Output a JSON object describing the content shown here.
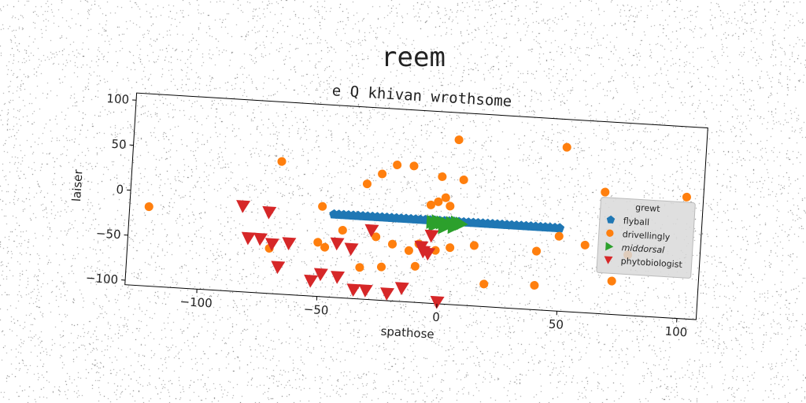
{
  "chart_data": {
    "type": "scatter",
    "title": "reem",
    "subtitle": "e Q khivan wrothsome",
    "xlabel": "spathose",
    "ylabel": "laiser",
    "xlim": [
      -130,
      108
    ],
    "ylim": [
      -105,
      108
    ],
    "xticks": [
      -100,
      -50,
      0,
      50,
      100
    ],
    "xtick_labels": [
      "−100",
      "−50",
      "0",
      "50",
      "100"
    ],
    "yticks": [
      -100,
      -50,
      0,
      50,
      100
    ],
    "ytick_labels": [
      "−100",
      "−50",
      "0",
      "50",
      "100"
    ],
    "grid": false,
    "legend": {
      "title": "grewt",
      "placement": "right"
    },
    "series": [
      {
        "name": "flyball",
        "color": "#1f77b4",
        "marker": "pentagon",
        "x": [
          -45,
          -43,
          -41,
          -39,
          -37,
          -35,
          -33,
          -31,
          -29,
          -27,
          -25,
          -23,
          -21,
          -19,
          -17,
          -15,
          -13,
          -11,
          -9,
          -7,
          -5,
          -3,
          -1,
          1,
          3,
          5,
          7,
          9,
          11,
          13,
          15,
          17,
          19,
          21,
          23,
          25,
          27,
          29,
          31,
          33,
          35,
          37,
          39,
          41,
          43,
          45,
          47,
          49
        ],
        "y": [
          -13,
          -13,
          -13,
          -13,
          -13,
          -13,
          -13,
          -13,
          -13,
          -13,
          -13,
          -13,
          -13,
          -13,
          -13,
          -13,
          -13,
          -13,
          -13,
          -13,
          -13,
          -13,
          -13,
          -13,
          -13,
          -13,
          -13,
          -13,
          -13,
          -13,
          -13,
          -13,
          -13,
          -13,
          -13,
          -13,
          -13,
          -13,
          -13,
          -13,
          -13,
          -13,
          -13,
          -13,
          -13,
          -13,
          -13,
          -13
        ]
      },
      {
        "name": "drivellingly",
        "color": "#ff7f0e",
        "marker": "circle",
        "x": [
          -122,
          -68,
          5,
          50,
          -20,
          -13,
          -1,
          -26,
          1,
          8,
          -32,
          -5,
          -2,
          3,
          -50,
          -41,
          -27,
          -20,
          -13,
          -9,
          -2,
          4,
          14,
          -71,
          -51,
          -48,
          -24,
          -10,
          -33,
          19,
          40,
          40,
          49,
          60,
          72,
          78,
          101,
          18,
          66,
          67
        ],
        "y": [
          -17,
          42,
          78,
          77,
          46,
          46,
          36,
          35,
          13,
          34,
          23,
          4,
          8,
          4,
          -5,
          -30,
          -35,
          -42,
          -48,
          -40,
          -46,
          -42,
          -38,
          -55,
          -45,
          -50,
          -68,
          -65,
          -70,
          -80,
          -40,
          -78,
          -22,
          -30,
          -68,
          -38,
          30,
          -115,
          -120,
          30
        ]
      },
      {
        "name": "middorsal",
        "color": "#2ca02c",
        "marker": "triangle-right",
        "x": [
          -4,
          -2,
          0,
          2,
          4,
          6,
          8,
          -3,
          1,
          5
        ],
        "y": [
          -15,
          -14,
          -15,
          -16,
          -15,
          -14,
          -15,
          -18,
          -20,
          -19
        ]
      },
      {
        "name": "phytobiologist",
        "color": "#d62728",
        "marker": "triangle-down",
        "x": [
          -83,
          -72,
          -80,
          -75,
          -70,
          -67,
          -63,
          -53,
          -49,
          -43,
          -42,
          -37,
          -35,
          -30,
          -29,
          -21,
          -15,
          -8,
          -7,
          -5,
          -4,
          0
        ],
        "y": [
          -10,
          -15,
          -45,
          -45,
          -50,
          -75,
          -48,
          -88,
          -80,
          -45,
          -82,
          -50,
          -95,
          -95,
          -28,
          -97,
          -90,
          -43,
          -48,
          -50,
          -30,
          -103
        ]
      }
    ]
  }
}
